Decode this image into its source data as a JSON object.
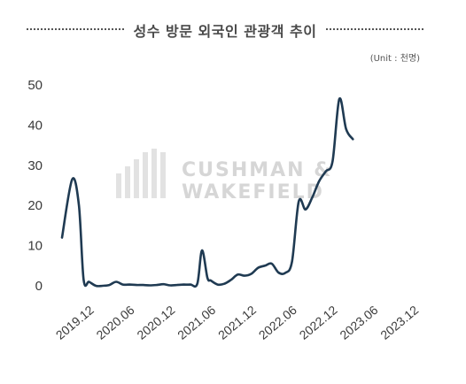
{
  "title": "성수 방문 외국인 관광객 추이",
  "unit_label": "(Unit : 천명)",
  "watermark": {
    "line1": "CUSHMAN &",
    "line2": "WAKEFIELD"
  },
  "colors": {
    "line": "#1f3a52",
    "text": "#3a3a3a",
    "watermark": "#d6d6d6"
  },
  "chart_data": {
    "type": "line",
    "title": "성수 방문 외국인 관광객 추이",
    "unit": "(Unit : 천명)",
    "ylim": [
      0,
      50
    ],
    "yticks": [
      0,
      10,
      20,
      30,
      40,
      50
    ],
    "xlim": [
      0,
      52
    ],
    "xticks": [
      {
        "x": 3,
        "label": "2019.12"
      },
      {
        "x": 9,
        "label": "2020.06"
      },
      {
        "x": 15,
        "label": "2020.12"
      },
      {
        "x": 21,
        "label": "2021.06"
      },
      {
        "x": 27,
        "label": "2021.12"
      },
      {
        "x": 33,
        "label": "2022.06"
      },
      {
        "x": 39,
        "label": "2022.12"
      },
      {
        "x": 45,
        "label": "2023.06"
      },
      {
        "x": 51,
        "label": "2023.12"
      }
    ],
    "grid": false,
    "series": [
      {
        "values": [
          [
            0,
            12
          ],
          [
            1.5,
            26.5
          ],
          [
            2.5,
            20
          ],
          [
            3.2,
            1.5
          ],
          [
            4,
            1
          ],
          [
            5,
            0
          ],
          [
            6,
            0
          ],
          [
            7,
            0.2
          ],
          [
            8,
            1
          ],
          [
            9,
            0.3
          ],
          [
            10,
            0.3
          ],
          [
            11,
            0.2
          ],
          [
            12,
            0.2
          ],
          [
            13,
            0.1
          ],
          [
            14,
            0.2
          ],
          [
            15,
            0.4
          ],
          [
            16,
            0.1
          ],
          [
            17,
            0.2
          ],
          [
            18,
            0.3
          ],
          [
            19,
            0.3
          ],
          [
            20,
            0.5
          ],
          [
            20.7,
            8.8
          ],
          [
            21.5,
            2
          ],
          [
            22,
            1.3
          ],
          [
            23,
            0.3
          ],
          [
            24,
            0.5
          ],
          [
            25,
            1.5
          ],
          [
            26,
            2.8
          ],
          [
            27,
            2.5
          ],
          [
            28,
            3
          ],
          [
            29,
            4.5
          ],
          [
            30,
            5
          ],
          [
            31,
            5.5
          ],
          [
            32,
            3.3
          ],
          [
            33,
            3.2
          ],
          [
            34,
            6
          ],
          [
            35,
            21
          ],
          [
            36,
            19
          ],
          [
            37,
            22
          ],
          [
            38,
            26
          ],
          [
            39,
            28.5
          ],
          [
            40,
            31
          ],
          [
            41,
            46.5
          ],
          [
            42,
            39
          ],
          [
            43,
            36.5
          ]
        ]
      }
    ]
  }
}
